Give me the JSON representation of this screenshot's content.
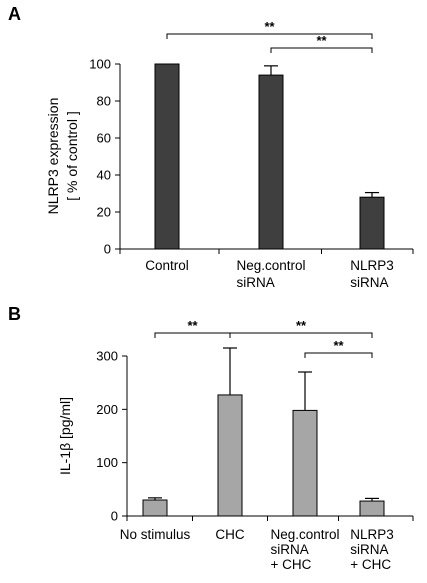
{
  "chart_data": [
    {
      "type": "bar",
      "panel_label": "A",
      "ylabel_lines": [
        "NLRP3 expression",
        "[ % of control ]"
      ],
      "ylim": [
        0,
        100
      ],
      "yticks": [
        0,
        20,
        40,
        60,
        80,
        100
      ],
      "categories": [
        {
          "lines": [
            "Control"
          ]
        },
        {
          "lines": [
            "Neg.control",
            "siRNA"
          ]
        },
        {
          "lines": [
            "NLRP3",
            "siRNA"
          ]
        }
      ],
      "values": [
        100,
        94,
        28
      ],
      "errors": [
        0,
        5,
        2.5
      ],
      "bar_color": "#3f3f3f",
      "significance": [
        {
          "from": 0,
          "to": 2,
          "label": "**"
        },
        {
          "from": 1,
          "to": 2,
          "label": "**"
        }
      ]
    },
    {
      "type": "bar",
      "panel_label": "B",
      "ylabel": "IL-1β  [pg/ml]",
      "ylim": [
        0,
        300
      ],
      "yticks": [
        0,
        100,
        200,
        300
      ],
      "categories": [
        {
          "lines": [
            "No stimulus"
          ]
        },
        {
          "lines": [
            "CHC"
          ]
        },
        {
          "lines": [
            "Neg.control",
            "siRNA",
            "+ CHC"
          ]
        },
        {
          "lines": [
            "NLRP3",
            "siRNA",
            "+ CHC"
          ]
        }
      ],
      "values": [
        30,
        227,
        198,
        28
      ],
      "errors": [
        4,
        88,
        72,
        5
      ],
      "bar_color": "#a6a6a6",
      "significance": [
        {
          "from": 0,
          "to": 1,
          "label": "**"
        },
        {
          "from": 1,
          "to": 3,
          "label": "**"
        },
        {
          "from": 2,
          "to": 3,
          "label": "**"
        }
      ]
    }
  ]
}
